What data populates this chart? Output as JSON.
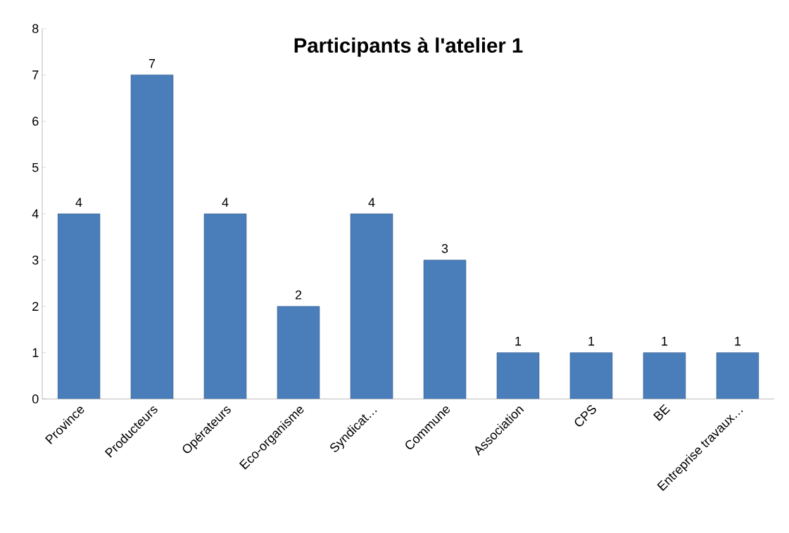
{
  "chart_data": {
    "type": "bar",
    "title": "Participants à l'atelier 1",
    "categories": [
      "Province",
      "Producteurs",
      "Opérateurs",
      "Eco-organisme",
      "Syndicat…",
      "Commune",
      "Association",
      "CPS",
      "BE",
      "Entreprise travaux…"
    ],
    "values": [
      4,
      7,
      4,
      2,
      4,
      3,
      1,
      1,
      1,
      1
    ],
    "color": "#4a7ebb",
    "ylim": [
      0,
      8
    ],
    "yticks": [
      0,
      1,
      2,
      3,
      4,
      5,
      6,
      7,
      8
    ],
    "data_labels": true
  }
}
